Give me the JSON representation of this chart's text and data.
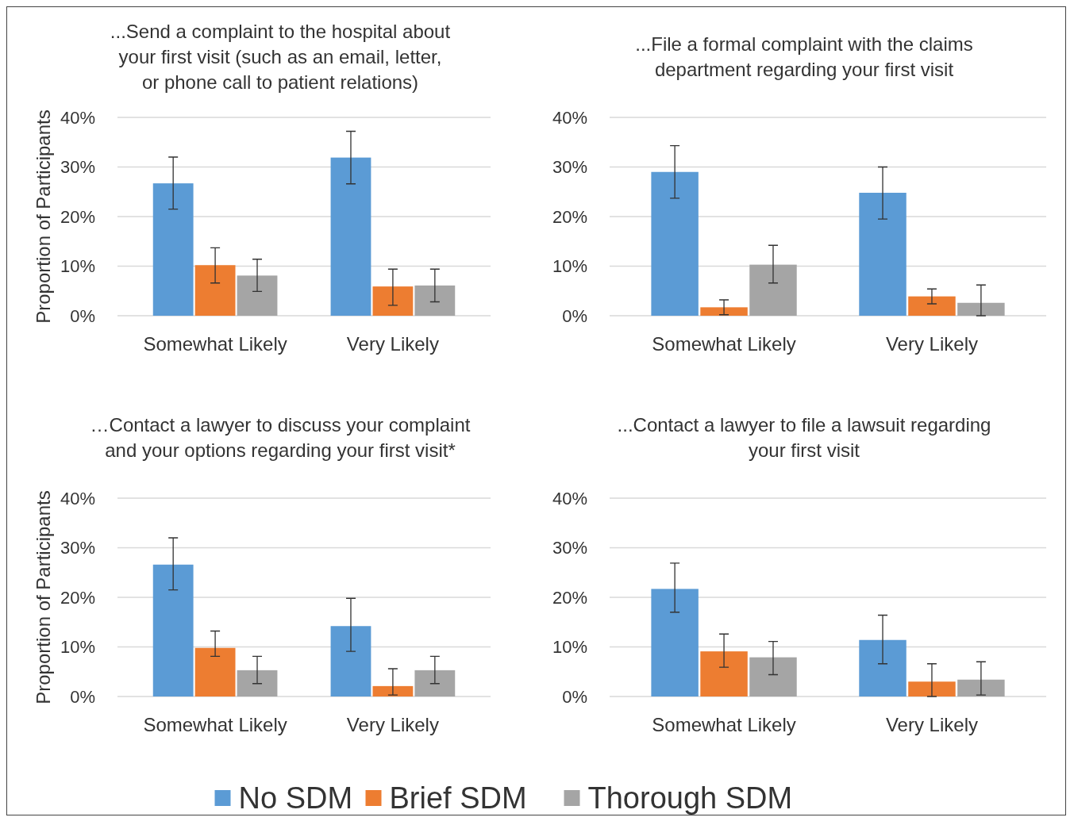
{
  "chart_data": [
    {
      "type": "bar",
      "title": "...Send a complaint to the hospital about your first visit (such as an email, letter, or phone call to patient relations)",
      "ylabel": "Proportion of Participants",
      "categories": [
        "Somewhat Likely",
        "Very Likely"
      ],
      "ylim": [
        0,
        40
      ],
      "yticks": [
        {
          "value": 0,
          "label": "0%"
        },
        {
          "value": 10,
          "label": "10%"
        },
        {
          "value": 20,
          "label": "20%"
        },
        {
          "value": 30,
          "label": "30%"
        },
        {
          "value": 40,
          "label": "40%"
        }
      ],
      "grid": "y",
      "legend": "bottom",
      "series": [
        {
          "name": "No SDM",
          "color": "#5b9bd5",
          "values": [
            26.7,
            31.9
          ],
          "errors": [
            [
              21.5,
              32.0
            ],
            [
              26.6,
              37.2
            ]
          ]
        },
        {
          "name": "Brief SDM",
          "color": "#ed7d31",
          "values": [
            10.2,
            5.9
          ],
          "errors": [
            [
              6.6,
              13.7
            ],
            [
              2.1,
              9.4
            ]
          ]
        },
        {
          "name": "Thorough SDM",
          "color": "#a5a5a5",
          "values": [
            8.1,
            6.1
          ],
          "errors": [
            [
              4.9,
              11.4
            ],
            [
              2.8,
              9.4
            ]
          ]
        }
      ]
    },
    {
      "type": "bar",
      "title": "...File a formal complaint with the claims department regarding your first visit",
      "categories": [
        "Somewhat Likely",
        "Very Likely"
      ],
      "ylim": [
        0,
        40
      ],
      "yticks": [
        {
          "value": 0,
          "label": "0%"
        },
        {
          "value": 10,
          "label": "10%"
        },
        {
          "value": 20,
          "label": "20%"
        },
        {
          "value": 30,
          "label": "30%"
        },
        {
          "value": 40,
          "label": "40%"
        }
      ],
      "grid": "y",
      "series": [
        {
          "color": "#5b9bd5",
          "values": [
            29.0,
            24.8
          ],
          "errors": [
            [
              23.7,
              34.3
            ],
            [
              19.5,
              30.0
            ]
          ]
        },
        {
          "color": "#ed7d31",
          "values": [
            1.7,
            3.9
          ],
          "errors": [
            [
              0.2,
              3.2
            ],
            [
              2.4,
              5.4
            ]
          ]
        },
        {
          "color": "#a5a5a5",
          "values": [
            10.3,
            2.6
          ],
          "errors": [
            [
              6.6,
              14.2
            ],
            [
              0,
              6.2
            ]
          ]
        }
      ]
    },
    {
      "type": "bar",
      "title": "…Contact a lawyer to discuss your complaint and your options regarding your first visit*",
      "ylabel": "Proportion of Participants",
      "categories": [
        "Somewhat Likely",
        "Very Likely"
      ],
      "ylim": [
        0,
        40
      ],
      "yticks": [
        {
          "value": 0,
          "label": "0%"
        },
        {
          "value": 10,
          "label": "10%"
        },
        {
          "value": 20,
          "label": "20%"
        },
        {
          "value": 30,
          "label": "30%"
        },
        {
          "value": 40,
          "label": "40%"
        }
      ],
      "grid": "y",
      "series": [
        {
          "color": "#5b9bd5",
          "values": [
            26.6,
            14.2
          ],
          "errors": [
            [
              21.5,
              32.0
            ],
            [
              9.1,
              19.8
            ]
          ]
        },
        {
          "color": "#ed7d31",
          "values": [
            9.8,
            2.1
          ],
          "errors": [
            [
              8.1,
              13.2
            ],
            [
              0.3,
              5.6
            ]
          ]
        },
        {
          "color": "#a5a5a5",
          "values": [
            5.3,
            5.3
          ],
          "errors": [
            [
              2.6,
              8.1
            ],
            [
              2.6,
              8.1
            ]
          ]
        }
      ]
    },
    {
      "type": "bar",
      "title": "...Contact a lawyer to file a lawsuit regarding your first visit",
      "categories": [
        "Somewhat Likely",
        "Very Likely"
      ],
      "ylim": [
        0,
        40
      ],
      "yticks": [
        {
          "value": 0,
          "label": "0%"
        },
        {
          "value": 10,
          "label": "10%"
        },
        {
          "value": 20,
          "label": "20%"
        },
        {
          "value": 30,
          "label": "30%"
        },
        {
          "value": 40,
          "label": "40%"
        }
      ],
      "grid": "y",
      "series": [
        {
          "color": "#5b9bd5",
          "values": [
            21.7,
            11.4
          ],
          "errors": [
            [
              17.0,
              26.9
            ],
            [
              6.6,
              16.4
            ]
          ]
        },
        {
          "color": "#ed7d31",
          "values": [
            9.1,
            3.0
          ],
          "errors": [
            [
              5.9,
              12.6
            ],
            [
              0,
              6.6
            ]
          ]
        },
        {
          "color": "#a5a5a5",
          "values": [
            7.9,
            3.4
          ],
          "errors": [
            [
              4.4,
              11.1
            ],
            [
              0.3,
              7.0
            ]
          ]
        }
      ]
    }
  ]
}
